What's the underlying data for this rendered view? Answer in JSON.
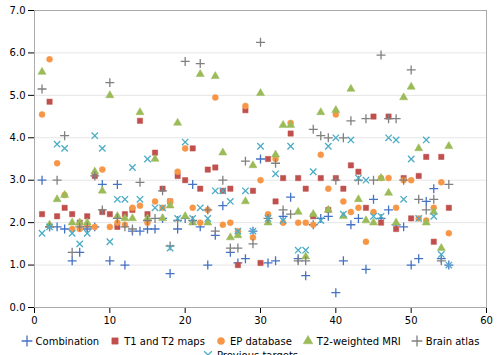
{
  "chart_data": {
    "type": "scatter",
    "xlim": [
      0,
      60
    ],
    "ylim": [
      0,
      7
    ],
    "xticks": [
      0,
      10,
      20,
      30,
      40,
      50,
      60
    ],
    "yticks": [
      0,
      1,
      2,
      3,
      4,
      5,
      6,
      7
    ],
    "grid": "y",
    "legend": "bottom",
    "series": [
      {
        "name": "Combination",
        "color": "#4472C4",
        "marker": "plus",
        "x": [
          1,
          2,
          3,
          4,
          5,
          6,
          7,
          8,
          9,
          10,
          11,
          12,
          13,
          14,
          15,
          16,
          17,
          18,
          19,
          20,
          21,
          22,
          23,
          24,
          25,
          26,
          27,
          28,
          29,
          30,
          31,
          32,
          33,
          34,
          35,
          36,
          37,
          38,
          39,
          40,
          41,
          42,
          43,
          44,
          45,
          46,
          47,
          48,
          49,
          50,
          51,
          52,
          53,
          54,
          55
        ],
        "values": [
          3.0,
          1.9,
          1.9,
          1.85,
          1.1,
          1.3,
          1.85,
          1.9,
          2.9,
          1.1,
          2.9,
          1.0,
          1.8,
          1.8,
          1.85,
          1.85,
          2.1,
          0.8,
          1.85,
          2.1,
          2.9,
          1.9,
          1.0,
          1.7,
          2.4,
          1.3,
          1.05,
          1.15,
          1.8,
          3.5,
          1.05,
          1.1,
          2.15,
          2.6,
          1.15,
          0.75,
          1.95,
          2.1,
          2.15,
          0.35,
          1.1,
          1.95,
          2.1,
          0.9,
          2.55,
          2.1,
          2.3,
          1.95,
          1.9,
          1.0,
          1.15,
          2.5,
          2.8,
          1.15,
          1.0
        ]
      },
      {
        "name": "T1 and T2 maps",
        "color": "#C0504D",
        "marker": "square",
        "x": [
          1,
          2,
          3,
          4,
          5,
          6,
          7,
          8,
          9,
          10,
          11,
          12,
          13,
          14,
          15,
          16,
          17,
          18,
          19,
          20,
          21,
          22,
          23,
          24,
          25,
          26,
          27,
          28,
          29,
          30,
          31,
          32,
          33,
          34,
          35,
          36,
          37,
          38,
          39,
          40,
          41,
          42,
          43,
          44,
          45,
          46,
          47,
          48,
          49,
          50,
          51,
          52,
          53,
          54,
          55
        ],
        "values": [
          2.2,
          4.85,
          2.15,
          2.35,
          2.2,
          2.0,
          2.15,
          3.1,
          2.25,
          2.2,
          1.9,
          2.2,
          2.3,
          4.4,
          2.2,
          3.65,
          2.8,
          2.5,
          3.1,
          3.0,
          3.75,
          2.8,
          3.25,
          3.3,
          2.75,
          2.8,
          1.0,
          4.65,
          2.75,
          1.05,
          3.5,
          2.5,
          3.05,
          4.1,
          3.05,
          2.8,
          2.15,
          3.05,
          2.3,
          3.05,
          2.8,
          3.35,
          3.2,
          2.35,
          4.5,
          2.0,
          4.5,
          1.85,
          3.05,
          2.1,
          3.1,
          3.55,
          1.55,
          3.55,
          2.35
        ]
      },
      {
        "name": "EP database",
        "color": "#F79646",
        "marker": "circle",
        "x": [
          1,
          2,
          3,
          4,
          5,
          6,
          7,
          8,
          9,
          10,
          11,
          12,
          13,
          14,
          15,
          16,
          17,
          18,
          19,
          20,
          21,
          22,
          23,
          24,
          25,
          26,
          27,
          28,
          29,
          30,
          31,
          32,
          33,
          34,
          35,
          36,
          37,
          38,
          39,
          40,
          41,
          42,
          43,
          44,
          45,
          46,
          47,
          48,
          49,
          50,
          51,
          52,
          53,
          54,
          55
        ],
        "values": [
          4.55,
          5.85,
          3.4,
          2.65,
          1.85,
          1.85,
          1.95,
          1.9,
          3.25,
          1.9,
          2.0,
          1.95,
          2.35,
          2.4,
          2.0,
          2.5,
          2.35,
          2.5,
          3.2,
          3.75,
          2.35,
          2.0,
          2.3,
          4.95,
          1.95,
          2.0,
          1.8,
          4.75,
          1.65,
          3.0,
          2.2,
          3.5,
          2.0,
          4.35,
          2.0,
          2.0,
          1.95,
          3.6,
          2.8,
          4.55,
          2.5,
          2.25,
          2.35,
          1.55,
          2.25,
          3.05,
          3.05,
          2.35,
          3.0,
          3.0,
          2.1,
          2.05,
          2.35,
          2.95,
          1.75
        ]
      },
      {
        "name": "T2-weighted MRI",
        "color": "#9BBB59",
        "marker": "triangle",
        "x": [
          1,
          2,
          3,
          4,
          5,
          6,
          7,
          8,
          9,
          10,
          11,
          12,
          13,
          14,
          15,
          16,
          17,
          18,
          19,
          20,
          21,
          22,
          23,
          24,
          25,
          26,
          27,
          28,
          29,
          30,
          31,
          32,
          33,
          34,
          35,
          36,
          37,
          38,
          39,
          40,
          41,
          42,
          43,
          44,
          45,
          46,
          47,
          48,
          49,
          50,
          51,
          52,
          53,
          54,
          55
        ],
        "values": [
          5.55,
          1.95,
          2.55,
          2.65,
          2.0,
          2.0,
          2.0,
          3.2,
          2.75,
          5.0,
          2.15,
          2.1,
          2.1,
          4.6,
          2.1,
          3.5,
          2.1,
          2.4,
          4.35,
          2.15,
          2.0,
          5.5,
          2.0,
          5.45,
          3.65,
          1.65,
          1.7,
          2.5,
          3.35,
          5.05,
          2.0,
          3.6,
          4.3,
          4.3,
          2.25,
          1.2,
          2.2,
          4.6,
          2.3,
          4.65,
          2.15,
          5.15,
          2.55,
          2.05,
          2.0,
          3.05,
          2.7,
          2.0,
          4.95,
          5.2,
          3.75,
          2.0,
          2.25,
          1.4,
          3.8
        ]
      },
      {
        "name": "Brain atlas",
        "color": "#808080",
        "marker": "plus",
        "x": [
          1,
          2,
          3,
          4,
          5,
          6,
          7,
          8,
          9,
          10,
          11,
          12,
          13,
          14,
          15,
          16,
          17,
          18,
          19,
          20,
          21,
          22,
          23,
          24,
          25,
          26,
          27,
          28,
          29,
          30,
          31,
          32,
          33,
          34,
          35,
          36,
          37,
          38,
          39,
          40,
          41,
          42,
          43,
          44,
          45,
          46,
          47,
          48,
          49,
          50,
          51,
          52,
          53,
          54,
          55
        ],
        "values": [
          5.15,
          1.9,
          3.0,
          4.05,
          1.3,
          1.9,
          1.9,
          3.1,
          2.3,
          5.3,
          2.1,
          1.9,
          1.85,
          2.95,
          2.05,
          2.1,
          2.75,
          1.45,
          2.05,
          5.8,
          2.05,
          5.75,
          2.3,
          1.8,
          3.0,
          1.4,
          1.4,
          3.45,
          1.5,
          6.25,
          2.1,
          3.4,
          2.3,
          2.2,
          1.1,
          1.1,
          4.2,
          4.05,
          4.0,
          3.0,
          4.0,
          4.4,
          3.0,
          4.45,
          3.0,
          5.95,
          4.45,
          4.45,
          3.0,
          5.6,
          2.55,
          2.3,
          2.55,
          1.1,
          2.9
        ]
      },
      {
        "name": "Previous targets",
        "color": "#4BACC6",
        "marker": "x",
        "x": [
          1,
          2,
          3,
          4,
          5,
          6,
          7,
          8,
          9,
          10,
          11,
          12,
          13,
          14,
          15,
          16,
          17,
          18,
          19,
          20,
          21,
          22,
          23,
          24,
          25,
          26,
          27,
          28,
          29,
          30,
          31,
          32,
          33,
          34,
          35,
          36,
          37,
          38,
          39,
          40,
          41,
          42,
          43,
          44,
          45,
          46,
          47,
          48,
          49,
          50,
          51,
          52,
          53,
          54,
          55
        ],
        "values": [
          1.75,
          1.9,
          3.85,
          3.75,
          1.75,
          1.5,
          1.75,
          4.05,
          3.75,
          1.55,
          2.55,
          2.55,
          3.3,
          2.55,
          3.5,
          2.35,
          2.35,
          1.4,
          2.1,
          3.9,
          2.1,
          2.35,
          2.1,
          2.75,
          2.75,
          2.5,
          1.8,
          2.75,
          1.8,
          3.8,
          2.1,
          3.15,
          2.05,
          3.8,
          1.35,
          1.35,
          3.2,
          2.05,
          3.8,
          4.0,
          2.2,
          3.95,
          3.05,
          3.0,
          2.15,
          2.15,
          4.0,
          3.95,
          2.55,
          3.5,
          2.1,
          3.95,
          2.15,
          1.25,
          1.0
        ]
      }
    ]
  }
}
